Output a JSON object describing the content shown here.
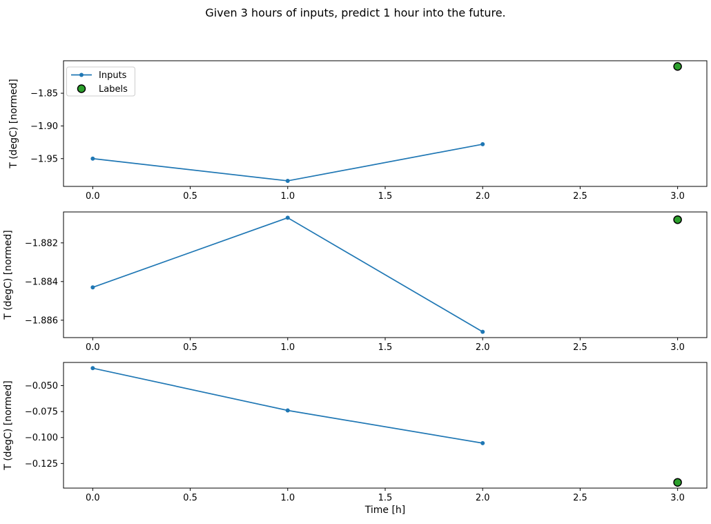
{
  "figure": {
    "background": "#ffffff"
  },
  "chart_data": {
    "type": "line",
    "title": "Given 3 hours of inputs, predict 1 hour into the future.",
    "xlabel": "Time [h]",
    "grid": false,
    "legend_position": "upper-left-subplot-1",
    "legend": [
      {
        "name": "Inputs",
        "marker": "line-with-dot",
        "color": "#1f77b4"
      },
      {
        "name": "Labels",
        "marker": "circle",
        "color": "#2ca02c",
        "edge_color": "#000000"
      }
    ],
    "xlim": [
      -0.15,
      3.15
    ],
    "x_tick_values": [
      0,
      0.5,
      1,
      1.5,
      2,
      2.5,
      3
    ],
    "x_tick_labels": [
      "0.0",
      "0.5",
      "1.0",
      "1.5",
      "2.0",
      "2.5",
      "3.0"
    ],
    "subplots": [
      {
        "ylabel": "T (degC) [normed]",
        "ylim": [
          -1.9925,
          -1.8003
        ],
        "y_ticks": [
          {
            "label": "−1.85",
            "value": -1.85
          },
          {
            "label": "−1.90",
            "value": -1.9
          },
          {
            "label": "−1.95",
            "value": -1.95
          }
        ],
        "series": [
          {
            "name": "Inputs",
            "x": [
              0,
              1,
              2
            ],
            "y": [
              -1.95,
              -1.984,
              -1.928
            ]
          },
          {
            "name": "Labels",
            "x": [
              3
            ],
            "y": [
              -1.809
            ]
          }
        ]
      },
      {
        "ylabel": "T (degC) [normed]",
        "ylim": [
          -1.8869,
          -1.8804
        ],
        "y_ticks": [
          {
            "label": "−1.882",
            "value": -1.882
          },
          {
            "label": "−1.884",
            "value": -1.884
          },
          {
            "label": "−1.886",
            "value": -1.886
          }
        ],
        "series": [
          {
            "name": "Inputs",
            "x": [
              0,
              1,
              2
            ],
            "y": [
              -1.8843,
              -1.8807,
              -1.8866
            ]
          },
          {
            "name": "Labels",
            "x": [
              3
            ],
            "y": [
              -1.8808
            ]
          }
        ]
      },
      {
        "ylabel": "T (degC) [normed]",
        "ylim": [
          -0.1487,
          -0.0277
        ],
        "y_ticks": [
          {
            "label": "−0.050",
            "value": -0.05
          },
          {
            "label": "−0.075",
            "value": -0.075
          },
          {
            "label": "−0.100",
            "value": -0.1
          },
          {
            "label": "−0.125",
            "value": -0.125
          }
        ],
        "series": [
          {
            "name": "Inputs",
            "x": [
              0,
              1,
              2
            ],
            "y": [
              -0.0332,
              -0.0739,
              -0.1054
            ]
          },
          {
            "name": "Labels",
            "x": [
              3
            ],
            "y": [
              -0.1432
            ]
          }
        ]
      }
    ]
  }
}
